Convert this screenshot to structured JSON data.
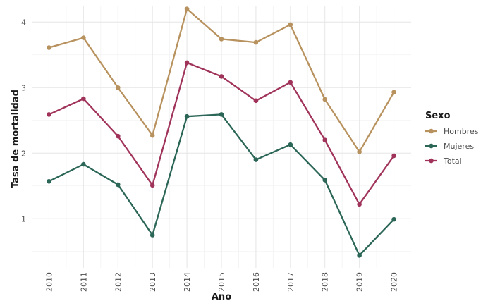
{
  "chart_data": {
    "type": "line",
    "title": "",
    "xlabel": "Año",
    "ylabel": "Tasa de mortalidad",
    "x": [
      2010,
      2011,
      2012,
      2013,
      2014,
      2015,
      2016,
      2017,
      2018,
      2019,
      2020
    ],
    "x_tick_labels": [
      "2010",
      "2011",
      "2012",
      "2013",
      "2014",
      "2015",
      "2016",
      "2017",
      "2018",
      "2019",
      "2020"
    ],
    "y_ticks": [
      1,
      2,
      3,
      4
    ],
    "y_tick_labels": [
      "1",
      "2",
      "3",
      "4"
    ],
    "ylim": [
      0.25,
      4.25
    ],
    "xlim": [
      2009.5,
      2020.5
    ],
    "grid": true,
    "x_tick_label_rotation": "vertical",
    "legend": {
      "title": "Sexo",
      "position": "right"
    },
    "series": [
      {
        "name": "Hombres",
        "color": "#B8925E",
        "values": [
          3.61,
          3.76,
          3.0,
          2.27,
          4.2,
          3.74,
          3.69,
          3.96,
          2.82,
          2.02,
          2.93
        ]
      },
      {
        "name": "Mujeres",
        "color": "#2B6657",
        "values": [
          1.57,
          1.83,
          1.52,
          0.75,
          2.56,
          2.59,
          1.9,
          2.13,
          1.59,
          0.44,
          0.99
        ]
      },
      {
        "name": "Total",
        "color": "#A0335A",
        "values": [
          2.59,
          2.83,
          2.26,
          1.51,
          3.38,
          3.17,
          2.8,
          3.08,
          2.2,
          1.22,
          1.96
        ]
      }
    ]
  }
}
